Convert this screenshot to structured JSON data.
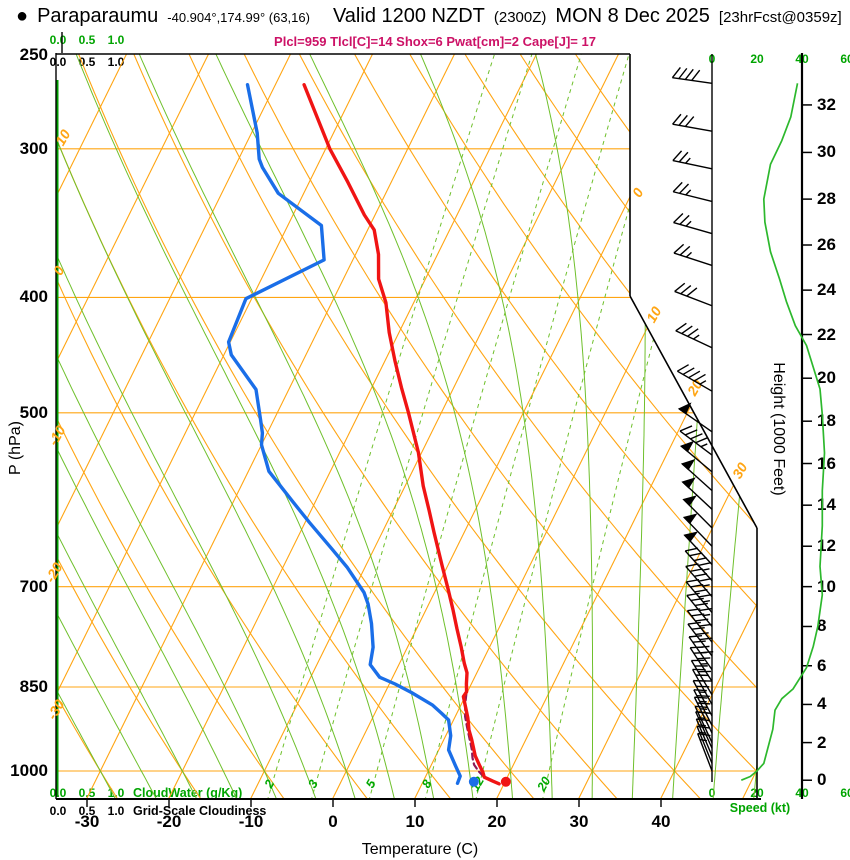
{
  "title": {
    "bullet": "●",
    "station": "Paraparaumu",
    "coords": "-40.904°,174.99° (63,16)",
    "valid": "Valid 1200 NZDT",
    "valid_z": "(2300Z)",
    "valid_date": "MON 8 Dec 2025",
    "fcst_tag": "[23hrFcst@0359z]"
  },
  "stats_line": "Plcl=959 Tlcl[C]=14 Shox=6 Pwat[cm]=2 Cape[J]= 17",
  "colors": {
    "orange": "#ffa513",
    "light_green": "#6fc02c",
    "green_text": "#00a800",
    "speed_green": "#2db82d",
    "cloudwater_green": "#009c00",
    "temp_red": "#f01414",
    "dew_blue": "#1a6ee8",
    "parcel_maroon": "#8c1a5a",
    "stats_magenta": "#cc1166",
    "axis_black": "#000000"
  },
  "axes": {
    "pressure_label": "P (hPa)",
    "pressure_ticks": [
      250,
      300,
      400,
      500,
      700,
      850,
      1000
    ],
    "temp_label": "Temperature (C)",
    "temp_ticks": [
      -30,
      -20,
      -10,
      0,
      10,
      20,
      30,
      40
    ],
    "height_label": "Height (1000 Feet)",
    "height_ticks": [
      0,
      2,
      4,
      6,
      8,
      10,
      12,
      14,
      16,
      18,
      20,
      22,
      24,
      26,
      28,
      30,
      32
    ],
    "speed_label": "Speed (kt)",
    "speed_ticks": [
      0,
      20,
      40,
      60
    ],
    "cloudwater_label": "CloudWater (g/Kg)",
    "cloudiness_label": "Grid-Scale Cloudiness",
    "cw_scale_values": [
      "0.0",
      "0.5",
      "1.0"
    ]
  },
  "chart_data": {
    "type": "skewt_log_p",
    "station": "Paraparaumu",
    "pressure_axis_hpa": [
      250,
      1060
    ],
    "isobar_lines_hpa": [
      300,
      400,
      500,
      700,
      850,
      1000
    ],
    "isotherm_step_c": 10,
    "isotherm_range_c": [
      -80,
      50
    ],
    "dry_adiabat_range_c": [
      -40,
      120
    ],
    "moist_adiabat_range_c": [
      -30,
      50
    ],
    "dry_adiabat_labels_c": [
      10,
      0,
      -10,
      -20,
      -30
    ],
    "isotherm_labels_right_c": [
      0,
      10,
      20,
      30
    ],
    "mixing_ratio_g_kg": [
      2,
      3,
      5,
      8,
      12,
      20
    ],
    "temperature_profile_p_t": [
      [
        265,
        -46.5
      ],
      [
        300,
        -39.5
      ],
      [
        320,
        -35.3
      ],
      [
        341,
        -31.3
      ],
      [
        351,
        -29.2
      ],
      [
        368,
        -27.2
      ],
      [
        386,
        -25.7
      ],
      [
        404,
        -23.4
      ],
      [
        428,
        -21.2
      ],
      [
        452,
        -18.8
      ],
      [
        476,
        -16.4
      ],
      [
        500,
        -14.0
      ],
      [
        540,
        -10.4
      ],
      [
        576,
        -7.8
      ],
      [
        604,
        -5.6
      ],
      [
        630,
        -3.7
      ],
      [
        672,
        -0.7
      ],
      [
        704,
        1.5
      ],
      [
        732,
        3.3
      ],
      [
        759,
        4.9
      ],
      [
        786,
        6.5
      ],
      [
        812,
        7.9
      ],
      [
        827,
        8.8
      ],
      [
        845,
        9.4
      ],
      [
        858,
        9.9
      ],
      [
        866,
        9.8
      ],
      [
        880,
        10.5
      ],
      [
        902,
        11.6
      ],
      [
        924,
        12.5
      ],
      [
        941,
        13.4
      ],
      [
        971,
        14.8
      ],
      [
        989,
        15.9
      ],
      [
        1002,
        16.7
      ],
      [
        1012,
        17.2
      ],
      [
        1020,
        18.5
      ],
      [
        1025,
        19.4
      ]
    ],
    "dewpoint_profile_p_t": [
      [
        265,
        -53.4
      ],
      [
        291,
        -49.3
      ],
      [
        306,
        -47.5
      ],
      [
        311,
        -46.6
      ],
      [
        327,
        -43.1
      ],
      [
        348,
        -35.9
      ],
      [
        372,
        -33.5
      ],
      [
        401,
        -40.7
      ],
      [
        436,
        -40.2
      ],
      [
        447,
        -39.1
      ],
      [
        478,
        -34.0
      ],
      [
        507,
        -31.6
      ],
      [
        520,
        -30.6
      ],
      [
        532,
        -30.0
      ],
      [
        560,
        -27.5
      ],
      [
        595,
        -22.6
      ],
      [
        618,
        -19.5
      ],
      [
        651,
        -15.1
      ],
      [
        674,
        -12.2
      ],
      [
        708,
        -8.6
      ],
      [
        724,
        -7.4
      ],
      [
        752,
        -5.8
      ],
      [
        787,
        -4.2
      ],
      [
        814,
        -3.5
      ],
      [
        834,
        -1.6
      ],
      [
        845,
        0.7
      ],
      [
        859,
        3.2
      ],
      [
        880,
        6.5
      ],
      [
        894,
        8.1
      ],
      [
        906,
        9.4
      ],
      [
        934,
        10.6
      ],
      [
        960,
        11.2
      ],
      [
        990,
        13.0
      ],
      [
        1010,
        14.2
      ],
      [
        1024,
        14.3
      ]
    ],
    "parcel_profile_p_t": [
      [
        862,
        10.0
      ],
      [
        876,
        10.4
      ],
      [
        900,
        11.2
      ],
      [
        919,
        12.1
      ],
      [
        940,
        13.1
      ],
      [
        959,
        14.0
      ],
      [
        975,
        14.6
      ],
      [
        988,
        15.2
      ],
      [
        1000,
        16.1
      ],
      [
        1010,
        17.0
      ],
      [
        1019,
        18.3
      ],
      [
        1024,
        19.2
      ]
    ],
    "surface": {
      "pressure_hpa": 1021,
      "temperature_c": 20.1,
      "dewpoint_c": 16.2
    },
    "lcl": {
      "pressure_hpa": 959,
      "temperature_c": 14
    },
    "indices": {
      "shox": 6,
      "pwat_cm": 2,
      "cape_j": 17
    },
    "wind_speed_profile_kft_kt": [
      [
        0,
        13
      ],
      [
        0.2,
        17
      ],
      [
        0.5,
        20
      ],
      [
        0.9,
        23
      ],
      [
        1.8,
        25
      ],
      [
        2.7,
        27
      ],
      [
        3.7,
        28
      ],
      [
        4.3,
        31
      ],
      [
        4.8,
        36
      ],
      [
        5.9,
        42
      ],
      [
        7,
        45
      ],
      [
        8,
        47
      ],
      [
        9.6,
        49
      ],
      [
        11,
        48
      ],
      [
        13,
        49
      ],
      [
        14.7,
        49
      ],
      [
        16.5,
        50
      ],
      [
        18.3,
        49
      ],
      [
        19.5,
        48
      ],
      [
        20.5,
        45
      ],
      [
        21.5,
        42
      ],
      [
        22.4,
        37
      ],
      [
        23.5,
        33
      ],
      [
        24.5,
        30
      ],
      [
        25.7,
        26
      ],
      [
        27,
        23.5
      ],
      [
        28,
        23
      ],
      [
        29.5,
        26
      ],
      [
        30.5,
        31
      ],
      [
        31.5,
        35
      ],
      [
        32.9,
        38
      ]
    ],
    "wind_barbs_kft_kt_dir": [
      [
        32.9,
        40,
        278
      ],
      [
        30.9,
        30,
        280
      ],
      [
        29.3,
        25,
        282
      ],
      [
        27.9,
        25,
        284
      ],
      [
        26.5,
        25,
        286
      ],
      [
        25.1,
        25,
        288
      ],
      [
        23.3,
        30,
        291
      ],
      [
        21.4,
        35,
        295
      ],
      [
        19.4,
        45,
        300
      ],
      [
        17.5,
        50,
        305
      ],
      [
        16.4,
        45,
        307
      ],
      [
        15.6,
        50,
        310
      ],
      [
        14.7,
        50,
        312
      ],
      [
        13.8,
        50,
        313
      ],
      [
        12.9,
        50,
        315
      ],
      [
        12.0,
        50,
        316
      ],
      [
        11.1,
        50,
        317
      ],
      [
        10.3,
        45,
        318
      ],
      [
        9.5,
        45,
        319
      ],
      [
        8.7,
        45,
        320
      ],
      [
        8.0,
        45,
        321
      ],
      [
        7.2,
        40,
        322
      ],
      [
        6.5,
        40,
        323
      ],
      [
        5.8,
        40,
        325
      ],
      [
        5.2,
        35,
        327
      ],
      [
        4.5,
        30,
        329
      ],
      [
        4.0,
        30,
        331
      ],
      [
        3.4,
        25,
        332
      ],
      [
        2.9,
        25,
        333
      ],
      [
        2.5,
        25,
        334
      ],
      [
        2.0,
        20,
        335
      ],
      [
        1.7,
        15,
        336
      ],
      [
        1.3,
        15,
        337
      ],
      [
        0.9,
        15,
        338
      ],
      [
        0.5,
        15,
        339
      ]
    ]
  }
}
